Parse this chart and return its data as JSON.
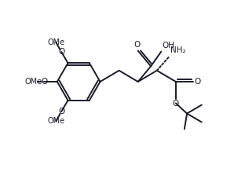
{
  "bg_color": "#ffffff",
  "line_color": "#1a1a2e",
  "bond_lw": 1.4,
  "dbo": 0.012,
  "figsize": [
    3.12,
    2.19
  ],
  "dpi": 100,
  "xlim": [
    0.0,
    1.0
  ],
  "ylim": [
    0.0,
    1.0
  ]
}
